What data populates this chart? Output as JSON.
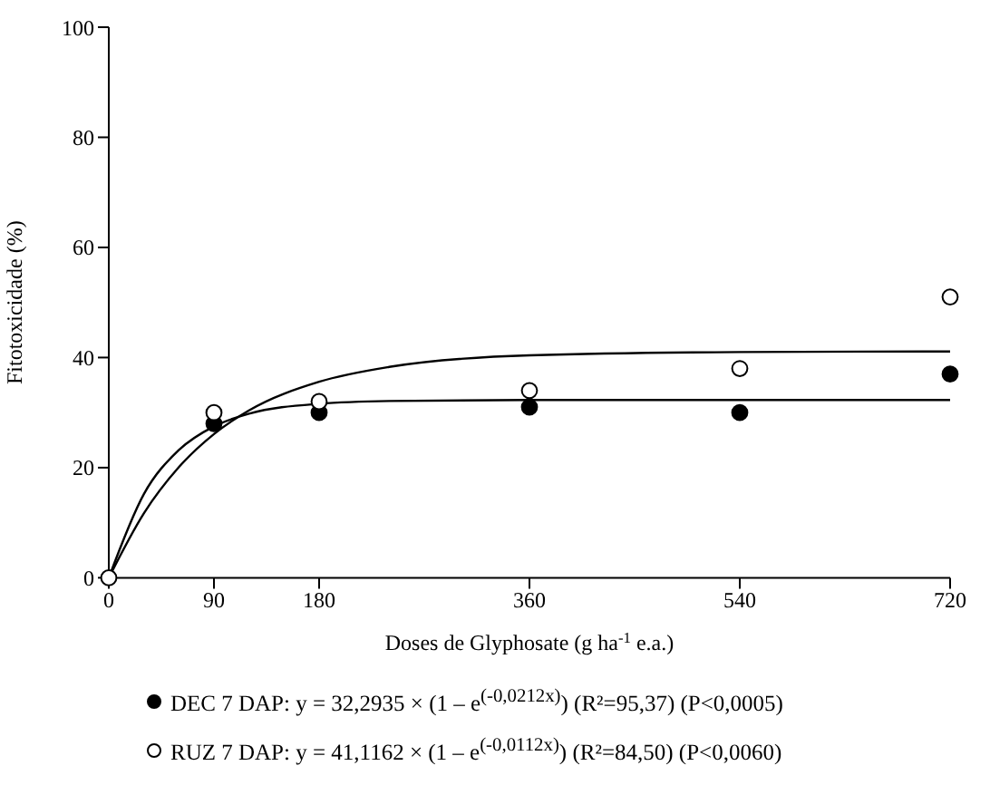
{
  "chart_data": {
    "type": "scatter",
    "xlabel": "Doses de Glyphosate (g ha$^{-1}$ e.a.)",
    "ylabel": "Fitotoxicidade (%)",
    "xlim": [
      0,
      720
    ],
    "xticks": [
      0,
      90,
      180,
      360,
      540,
      720
    ],
    "ylim": [
      0,
      100
    ],
    "yticks": [
      0,
      20,
      40,
      60,
      80,
      100
    ],
    "grid": false,
    "legend": "bottom",
    "marker": "circle",
    "series": [
      {
        "name": "DEC 7 DAP: y = 32,2935 × (1 – e$^{(-0,0212x)}$) (R²=95,37) (P<0,0005)",
        "color": "#000000",
        "x": [
          90,
          180,
          360,
          540,
          720
        ],
        "values": [
          28,
          30,
          31,
          30,
          37
        ]
      },
      {
        "name": "RUZ 7 DAP: y = 41,1162 × (1 – e$^{(-0,0112x)}$) (R²=84,50) (P<0,0060)",
        "color": "#ffffff",
        "x": [
          0,
          90,
          180,
          360,
          540,
          720
        ],
        "values": [
          0,
          30,
          32,
          34,
          38,
          51
        ]
      },
      {
        "type": "line",
        "color": "#000000",
        "marker": "none",
        "x": [
          0,
          30,
          60,
          90,
          120,
          180,
          240,
          360,
          540,
          720
        ],
        "values": [
          0,
          15.2,
          23.2,
          27.5,
          29.8,
          31.6,
          32.1,
          32.3,
          32.3,
          32.3
        ]
      },
      {
        "type": "line",
        "color": "#000000",
        "marker": "none",
        "x": [
          0,
          30,
          60,
          90,
          120,
          180,
          240,
          360,
          540,
          720
        ],
        "values": [
          0,
          11.7,
          20.1,
          26.1,
          30.4,
          35.6,
          38.3,
          40.4,
          41.0,
          41.1
        ]
      }
    ]
  }
}
